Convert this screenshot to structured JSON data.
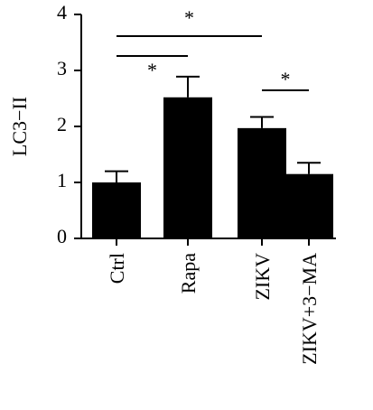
{
  "chart_data": {
    "type": "bar",
    "y_label": "LC3−II",
    "categories": [
      "Ctrl",
      "Rapa",
      "ZIKV",
      "ZIKV+3−MA"
    ],
    "values": [
      1.0,
      2.52,
      1.97,
      1.15
    ],
    "errors": [
      0.2,
      0.37,
      0.2,
      0.2
    ],
    "color": "#000000",
    "ylim": [
      0,
      4
    ],
    "yticks": [
      0,
      1,
      2,
      3,
      4
    ],
    "annotations": [
      {
        "text": "*",
        "from": "Ctrl",
        "to": "ZIKV"
      },
      {
        "text": "*",
        "from": "Ctrl",
        "to": "Rapa"
      },
      {
        "text": "*",
        "from": "ZIKV",
        "to": "ZIKV+3−MA"
      }
    ]
  }
}
